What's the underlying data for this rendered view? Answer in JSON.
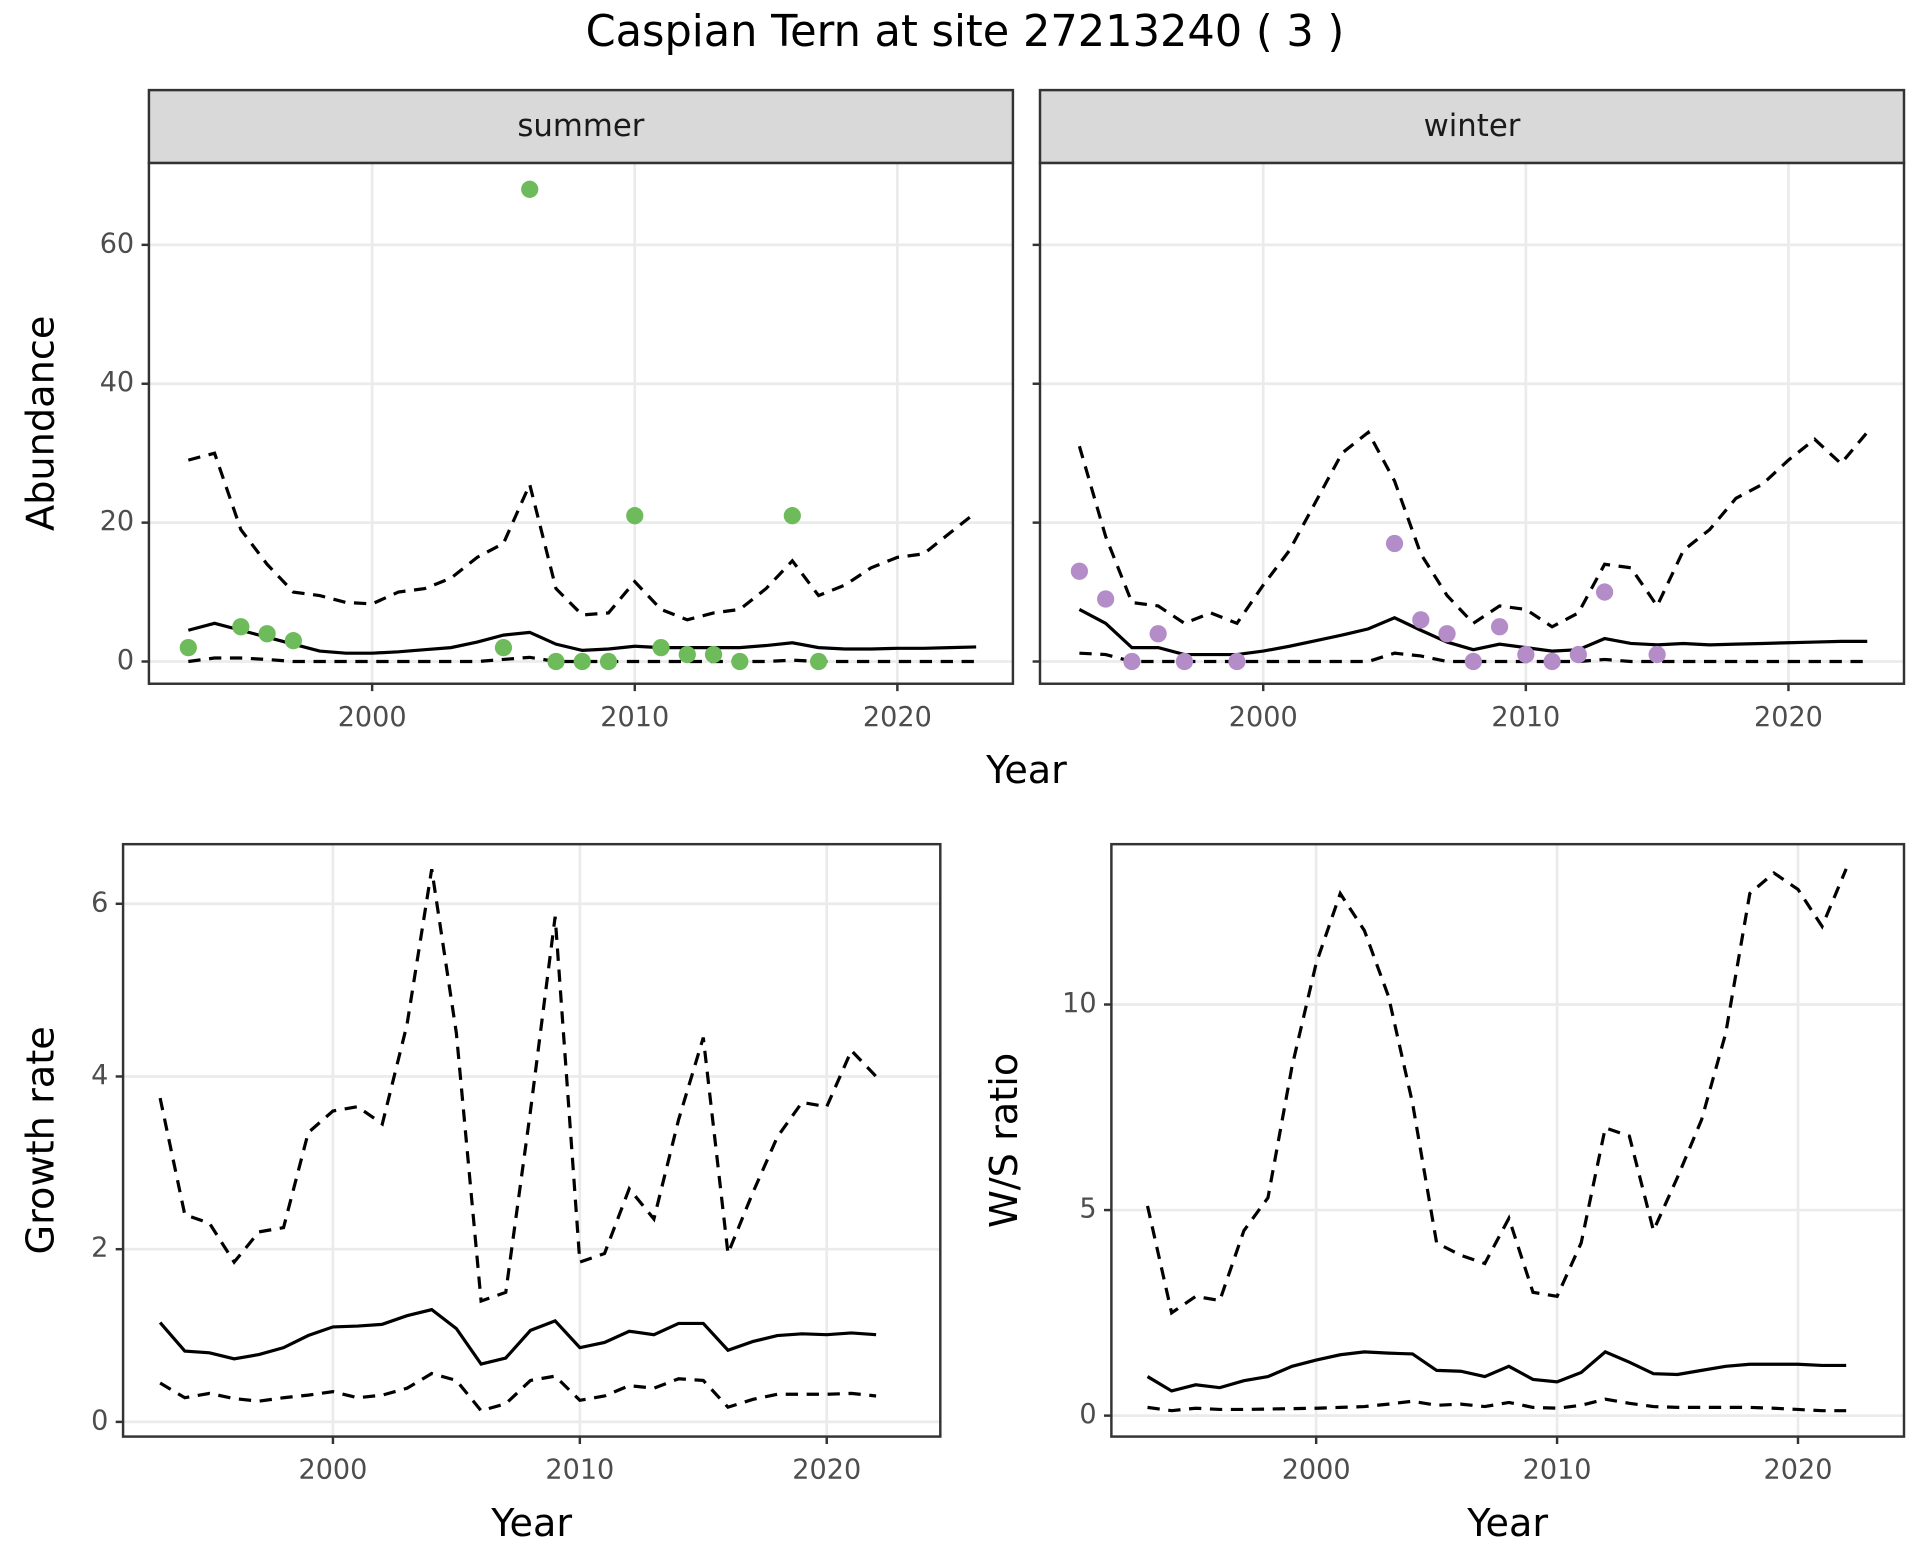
{
  "title": "Caspian Tern at site 27213240 ( 3 )",
  "chart_data": [
    {
      "type": "line",
      "facet": "summer",
      "ylabel": "Abundance",
      "xlabel": "Year",
      "xlim": [
        1991.5,
        2024.4
      ],
      "ylim": [
        -3.2,
        71.8
      ],
      "xticks": [
        2000,
        2010,
        2020
      ],
      "yticks": [
        0,
        20,
        40,
        60
      ],
      "show_yticklabels": true,
      "show_xlabel": true,
      "grid": true,
      "x": [
        1993,
        1994,
        1995,
        1996,
        1997,
        1998,
        1999,
        2000,
        2001,
        2002,
        2003,
        2004,
        2005,
        2006,
        2007,
        2008,
        2009,
        2010,
        2011,
        2012,
        2013,
        2014,
        2015,
        2016,
        2017,
        2018,
        2019,
        2020,
        2021,
        2022,
        2023
      ],
      "series": [
        {
          "style": "dashed",
          "color": "#000000",
          "values": [
            29,
            30,
            19,
            14,
            10,
            9.5,
            8.5,
            8.3,
            10,
            10.5,
            12,
            15,
            17,
            25.5,
            10.5,
            6.7,
            7,
            11.5,
            7.5,
            6,
            7,
            7.5,
            10.5,
            14.5,
            9.5,
            11,
            13.5,
            15,
            15.5,
            18.5,
            21.5
          ]
        },
        {
          "style": "solid",
          "color": "#000000",
          "values": [
            4.5,
            5.5,
            4.5,
            3.5,
            2.5,
            1.5,
            1.2,
            1.2,
            1.4,
            1.7,
            2,
            2.8,
            3.8,
            4.2,
            2.5,
            1.6,
            1.8,
            2.2,
            2,
            2,
            2,
            2,
            2.3,
            2.7,
            2,
            1.8,
            1.8,
            1.9,
            1.9,
            2,
            2.1
          ]
        },
        {
          "style": "dashed",
          "color": "#000000",
          "values": [
            0,
            0.5,
            0.5,
            0.3,
            0,
            0,
            0,
            0,
            0,
            0,
            0,
            0,
            0.3,
            0.6,
            0,
            0,
            0,
            0,
            0,
            0,
            0,
            0,
            0,
            0.2,
            0,
            0,
            0,
            0,
            0,
            0,
            0
          ]
        },
        {
          "style": "points",
          "color": "#6dbb5a",
          "x": [
            1993,
            1995,
            1996,
            1997,
            2005,
            2006,
            2007,
            2008,
            2009,
            2010,
            2011,
            2012,
            2013,
            2014,
            2016,
            2017
          ],
          "values": [
            2,
            5,
            4,
            3,
            2,
            68,
            0,
            0,
            0,
            21,
            2,
            1,
            1,
            0,
            21,
            0
          ]
        }
      ]
    },
    {
      "type": "line",
      "facet": "winter",
      "xlim": [
        1991.5,
        2024.4
      ],
      "ylim": [
        -3.2,
        71.8
      ],
      "xticks": [
        2000,
        2010,
        2020
      ],
      "yticks": [
        0,
        20,
        40,
        60
      ],
      "show_yticklabels": false,
      "show_xlabel": false,
      "grid": true,
      "x": [
        1993,
        1994,
        1995,
        1996,
        1997,
        1998,
        1999,
        2000,
        2001,
        2002,
        2003,
        2004,
        2005,
        2006,
        2007,
        2008,
        2009,
        2010,
        2011,
        2012,
        2013,
        2014,
        2015,
        2016,
        2017,
        2018,
        2019,
        2020,
        2021,
        2022,
        2023
      ],
      "series": [
        {
          "style": "dashed",
          "color": "#000000",
          "values": [
            31,
            18,
            8.5,
            8,
            5.5,
            7,
            5.5,
            11,
            16,
            23,
            30,
            33,
            26,
            15.5,
            9.5,
            5.5,
            8,
            7.5,
            5,
            7,
            14,
            13.5,
            8,
            16,
            19,
            23.5,
            25.5,
            29,
            32,
            28.5,
            33
          ]
        },
        {
          "style": "solid",
          "color": "#000000",
          "values": [
            7.5,
            5.5,
            2,
            2,
            1,
            1,
            1,
            1.5,
            2.2,
            3,
            3.8,
            4.7,
            6.3,
            4.5,
            2.8,
            1.7,
            2.5,
            2,
            1.5,
            1.7,
            3.3,
            2.6,
            2.4,
            2.6,
            2.4,
            2.5,
            2.6,
            2.7,
            2.8,
            2.9,
            2.9
          ]
        },
        {
          "style": "dashed",
          "color": "#000000",
          "values": [
            1.2,
            1,
            0,
            0,
            0,
            0,
            0,
            0,
            0,
            0,
            0,
            0,
            1.2,
            0.8,
            0,
            0,
            0,
            0,
            0,
            0,
            0.3,
            0,
            0,
            0,
            0,
            0,
            0,
            0,
            0,
            0,
            0
          ]
        },
        {
          "style": "points",
          "color": "#b48cc8",
          "x": [
            1993,
            1994,
            1995,
            1996,
            1997,
            1999,
            2005,
            2006,
            2007,
            2008,
            2009,
            2010,
            2011,
            2012,
            2013,
            2015
          ],
          "values": [
            13,
            9,
            0,
            4,
            0,
            0,
            17,
            6,
            4,
            0,
            5,
            1,
            0,
            1,
            10,
            1
          ]
        }
      ]
    },
    {
      "type": "line",
      "ylabel": "Growth rate",
      "xlabel": "Year",
      "xlim": [
        1991.5,
        2024.6
      ],
      "ylim": [
        -0.17,
        6.69
      ],
      "xticks": [
        2000,
        2010,
        2020
      ],
      "yticks": [
        0,
        2,
        4,
        6
      ],
      "show_yticklabels": true,
      "show_xlabel": true,
      "grid": true,
      "x": [
        1993,
        1994,
        1995,
        1996,
        1997,
        1998,
        1999,
        2000,
        2001,
        2002,
        2003,
        2004,
        2005,
        2006,
        2007,
        2008,
        2009,
        2010,
        2011,
        2012,
        2013,
        2014,
        2015,
        2016,
        2017,
        2018,
        2019,
        2020,
        2021,
        2022
      ],
      "series": [
        {
          "style": "dashed",
          "color": "#000000",
          "values": [
            3.75,
            2.4,
            2.3,
            1.85,
            2.2,
            2.25,
            3.35,
            3.6,
            3.65,
            3.45,
            4.6,
            6.4,
            4.5,
            1.4,
            1.5,
            3.6,
            5.85,
            1.85,
            1.95,
            2.7,
            2.35,
            3.5,
            4.45,
            1.95,
            2.65,
            3.3,
            3.7,
            3.65,
            4.3,
            4.0
          ]
        },
        {
          "style": "solid",
          "color": "#000000",
          "values": [
            1.15,
            0.82,
            0.8,
            0.73,
            0.78,
            0.86,
            1.0,
            1.1,
            1.11,
            1.13,
            1.23,
            1.3,
            1.08,
            0.67,
            0.74,
            1.06,
            1.17,
            0.86,
            0.92,
            1.05,
            1.01,
            1.14,
            1.14,
            0.83,
            0.93,
            1.0,
            1.02,
            1.01,
            1.03,
            1.01
          ]
        },
        {
          "style": "dashed",
          "color": "#000000",
          "values": [
            0.45,
            0.28,
            0.33,
            0.27,
            0.24,
            0.28,
            0.31,
            0.35,
            0.28,
            0.31,
            0.39,
            0.56,
            0.48,
            0.13,
            0.21,
            0.48,
            0.53,
            0.25,
            0.3,
            0.42,
            0.39,
            0.5,
            0.48,
            0.17,
            0.26,
            0.32,
            0.32,
            0.32,
            0.33,
            0.3
          ]
        }
      ]
    },
    {
      "type": "line",
      "ylabel": "W/S ratio",
      "xlabel": "Year",
      "xlim": [
        1991.5,
        2024.4
      ],
      "ylim": [
        -0.51,
        13.9
      ],
      "xticks": [
        2000,
        2010,
        2020
      ],
      "yticks": [
        0,
        5,
        10
      ],
      "show_yticklabels": true,
      "show_xlabel": true,
      "grid": true,
      "x": [
        1993,
        1994,
        1995,
        1996,
        1997,
        1998,
        1999,
        2000,
        2001,
        2002,
        2003,
        2004,
        2005,
        2006,
        2007,
        2008,
        2009,
        2010,
        2011,
        2012,
        2013,
        2014,
        2015,
        2016,
        2017,
        2018,
        2019,
        2020,
        2021,
        2022
      ],
      "series": [
        {
          "style": "dashed",
          "color": "#000000",
          "values": [
            5.1,
            2.5,
            2.9,
            2.8,
            4.5,
            5.3,
            8.5,
            11,
            12.7,
            11.8,
            10.2,
            7.6,
            4.2,
            3.9,
            3.7,
            4.8,
            3.0,
            2.9,
            4.2,
            7.0,
            6.8,
            4.5,
            5.8,
            7.2,
            9.3,
            12.7,
            13.2,
            12.8,
            11.9,
            13.3
          ]
        },
        {
          "style": "solid",
          "color": "#000000",
          "values": [
            0.95,
            0.6,
            0.75,
            0.68,
            0.85,
            0.95,
            1.2,
            1.35,
            1.48,
            1.55,
            1.52,
            1.5,
            1.1,
            1.08,
            0.95,
            1.2,
            0.88,
            0.82,
            1.05,
            1.55,
            1.3,
            1.02,
            1.0,
            1.1,
            1.2,
            1.25,
            1.25,
            1.25,
            1.22,
            1.22
          ]
        },
        {
          "style": "dashed",
          "color": "#000000",
          "values": [
            0.2,
            0.12,
            0.18,
            0.15,
            0.15,
            0.16,
            0.17,
            0.18,
            0.2,
            0.22,
            0.28,
            0.35,
            0.25,
            0.28,
            0.22,
            0.32,
            0.2,
            0.18,
            0.25,
            0.4,
            0.3,
            0.22,
            0.2,
            0.2,
            0.2,
            0.2,
            0.18,
            0.15,
            0.12,
            0.12
          ]
        }
      ]
    }
  ]
}
